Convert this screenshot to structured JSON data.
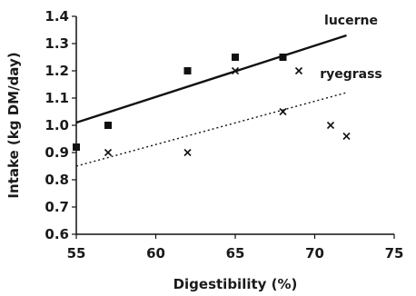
{
  "chart_data": {
    "type": "scatter",
    "title": "",
    "xlabel": "Digestibility (%)",
    "ylabel": "Intake (kg DM/day)",
    "xlim": [
      55,
      75
    ],
    "ylim": [
      0.6,
      1.4
    ],
    "x_ticks": [
      "55",
      "60",
      "65",
      "70",
      "75"
    ],
    "y_ticks": [
      "0.6",
      "0.7",
      "0.8",
      "0.9",
      "1.0",
      "1.1",
      "1.2",
      "1.3",
      "1.4"
    ],
    "grid": false,
    "legend": "none",
    "series": [
      {
        "name": "lucerne",
        "marker": "square",
        "color": "#111111",
        "points": [
          {
            "x": 55,
            "y": 0.92
          },
          {
            "x": 57,
            "y": 1.0
          },
          {
            "x": 62,
            "y": 1.2
          },
          {
            "x": 65,
            "y": 1.25
          },
          {
            "x": 68,
            "y": 1.25
          }
        ],
        "trendline": {
          "style": "solid",
          "x": [
            55,
            72
          ],
          "y": [
            1.01,
            1.33
          ]
        }
      },
      {
        "name": "ryegrass",
        "marker": "x",
        "color": "#111111",
        "points": [
          {
            "x": 57,
            "y": 0.9
          },
          {
            "x": 62,
            "y": 0.9
          },
          {
            "x": 65,
            "y": 1.2
          },
          {
            "x": 68,
            "y": 1.05
          },
          {
            "x": 69,
            "y": 1.2
          },
          {
            "x": 71,
            "y": 1.0
          },
          {
            "x": 72,
            "y": 0.96
          }
        ],
        "trendline": {
          "style": "dotted",
          "x": [
            55,
            72
          ],
          "y": [
            0.85,
            1.12
          ]
        }
      }
    ]
  }
}
